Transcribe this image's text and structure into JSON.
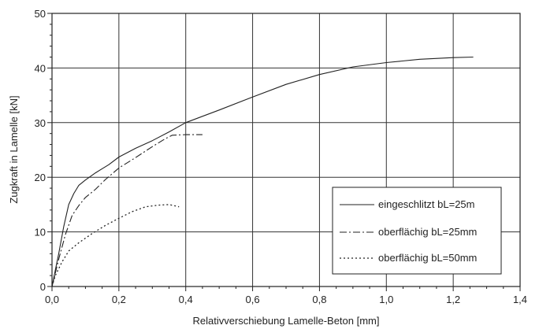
{
  "chart_data": {
    "type": "line",
    "title": "",
    "xlabel": "Relativverschiebung Lamelle-Beton [mm]",
    "ylabel": "Zugkraft in Lamelle [kN]",
    "xlim": [
      0,
      1.4
    ],
    "ylim": [
      0,
      50
    ],
    "x_ticks": [
      "0,0",
      "0,2",
      "0,4",
      "0,6",
      "0,8",
      "1,0",
      "1,2",
      "1,4"
    ],
    "y_ticks": [
      "0",
      "10",
      "20",
      "30",
      "40",
      "50"
    ],
    "grid": true,
    "legend_position": "bottom-right",
    "series": [
      {
        "name": "eingeschlitzt bL=25m",
        "style": "solid",
        "points": [
          [
            0,
            0
          ],
          [
            0.01,
            3
          ],
          [
            0.02,
            6
          ],
          [
            0.035,
            11
          ],
          [
            0.05,
            15
          ],
          [
            0.065,
            17
          ],
          [
            0.08,
            18.5
          ],
          [
            0.1,
            19.5
          ],
          [
            0.13,
            20.8
          ],
          [
            0.17,
            22.3
          ],
          [
            0.2,
            23.7
          ],
          [
            0.25,
            25.3
          ],
          [
            0.3,
            26.7
          ],
          [
            0.35,
            28.3
          ],
          [
            0.4,
            30
          ],
          [
            0.5,
            32.3
          ],
          [
            0.6,
            34.7
          ],
          [
            0.7,
            37
          ],
          [
            0.8,
            38.8
          ],
          [
            0.9,
            40.2
          ],
          [
            1.0,
            41
          ],
          [
            1.1,
            41.6
          ],
          [
            1.2,
            41.9
          ],
          [
            1.26,
            42
          ]
        ]
      },
      {
        "name": "oberflächig bL=25mm",
        "style": "dash-dot",
        "points": [
          [
            0,
            0
          ],
          [
            0.02,
            5
          ],
          [
            0.04,
            9.5
          ],
          [
            0.06,
            13
          ],
          [
            0.08,
            14.8
          ],
          [
            0.1,
            16.3
          ],
          [
            0.13,
            17.8
          ],
          [
            0.16,
            19.6
          ],
          [
            0.2,
            21.7
          ],
          [
            0.25,
            23.6
          ],
          [
            0.3,
            25.6
          ],
          [
            0.34,
            27.1
          ],
          [
            0.36,
            27.7
          ],
          [
            0.4,
            27.8
          ],
          [
            0.45,
            27.8
          ]
        ]
      },
      {
        "name": "oberflächig bL=50mm",
        "style": "dotted",
        "points": [
          [
            0,
            0
          ],
          [
            0.01,
            2
          ],
          [
            0.03,
            4.5
          ],
          [
            0.05,
            6.5
          ],
          [
            0.08,
            8
          ],
          [
            0.12,
            9.7
          ],
          [
            0.16,
            11.2
          ],
          [
            0.2,
            12.5
          ],
          [
            0.24,
            13.7
          ],
          [
            0.28,
            14.6
          ],
          [
            0.32,
            14.9
          ],
          [
            0.35,
            15
          ],
          [
            0.38,
            14.6
          ]
        ]
      }
    ]
  }
}
